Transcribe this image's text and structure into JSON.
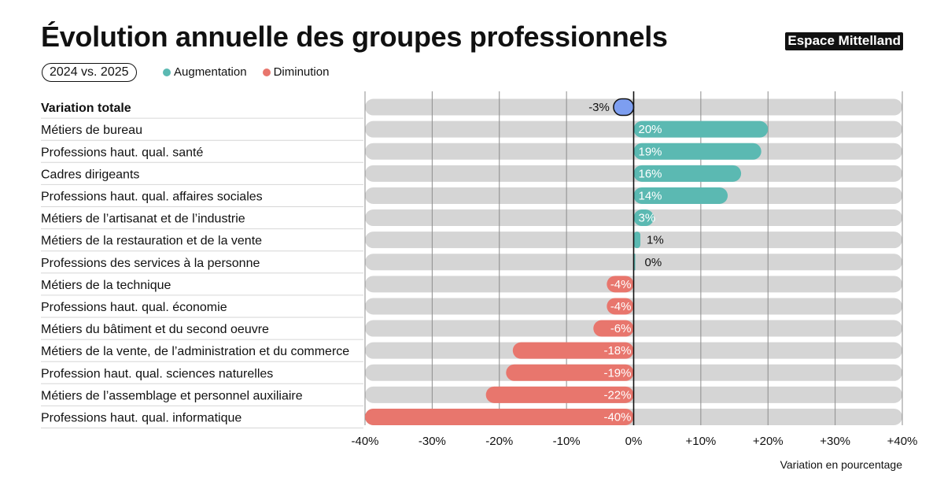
{
  "header": {
    "title": "Évolution annuelle des groupes professionnels",
    "brand": "Espace Mittelland",
    "period": "2024 vs. 2025"
  },
  "legend": {
    "increase_label": "Augmentation",
    "decrease_label": "Diminution"
  },
  "colors": {
    "increase": "#5bb9b2",
    "decrease": "#e8766d",
    "total": "#7d9ef0",
    "track": "#d5d5d5"
  },
  "chart_data": {
    "type": "bar",
    "orientation": "horizontal",
    "xlabel": "Variation en pourcentage",
    "xlim": [
      -40,
      40
    ],
    "x_ticks": [
      -40,
      -30,
      -20,
      -10,
      0,
      10,
      20,
      30,
      40
    ],
    "x_tick_labels": [
      "-40%",
      "-30%",
      "-20%",
      "-10%",
      "0%",
      "+10%",
      "+20%",
      "+30%",
      "+40%"
    ],
    "grid": true,
    "categories": [
      "Variation totale",
      "Métiers de bureau",
      "Professions haut. qual. santé",
      "Cadres dirigeants",
      "Professions haut. qual. affaires sociales",
      "Métiers de l’artisanat et de l’industrie",
      "Métiers de la restauration et de la vente",
      "Professions des services à la personne",
      "Métiers de la technique",
      "Professions haut. qual. économie",
      "Métiers du bâtiment et du second oeuvre",
      "Métiers de la vente, de l’administration et du commerce",
      "Profession haut. qual. sciences naturelles",
      "Métiers de l’assemblage et personnel auxiliaire",
      "Professions haut. qual. informatique"
    ],
    "values": [
      -3,
      20,
      19,
      16,
      14,
      3,
      1,
      0,
      -4,
      -4,
      -6,
      -18,
      -19,
      -22,
      -40
    ],
    "value_labels": [
      "-3%",
      "20%",
      "19%",
      "16%",
      "14%",
      "3%",
      "1%",
      "0%",
      "-4%",
      "-4%",
      "-6%",
      "-18%",
      "-19%",
      "-22%",
      "-40%"
    ]
  }
}
